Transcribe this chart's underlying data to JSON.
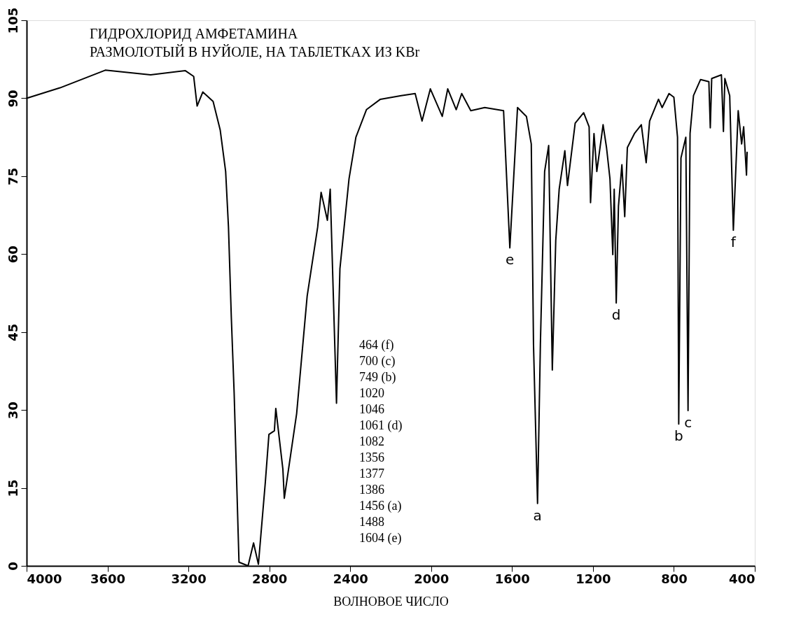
{
  "chart_data": {
    "type": "line",
    "title": "ГИДРОХЛОРИД АМФЕТАМИНА",
    "subtitle": "РАЗМОЛОТЫЙ В НУЙОЛЕ, НА ТАБЛЕТКАХ ИЗ KBr",
    "xlabel": "ВОЛНОВОЕ ЧИСЛО",
    "x": [
      4000,
      3835,
      3611,
      3387,
      3215,
      3174,
      3157,
      3129,
      3078,
      3043,
      3016,
      3002,
      2988,
      2974,
      2950,
      2905,
      2878,
      2854,
      2820,
      2802,
      2775,
      2768,
      2733,
      2726,
      2665,
      2613,
      2561,
      2544,
      2513,
      2499,
      2468,
      2451,
      2406,
      2372,
      2320,
      2251,
      2148,
      2079,
      2045,
      2004,
      1945,
      1918,
      1876,
      1849,
      1804,
      1735,
      1642,
      1611,
      1573,
      1529,
      1505,
      1494,
      1474,
      1460,
      1439,
      1419,
      1401,
      1384,
      1367,
      1339,
      1326,
      1288,
      1246,
      1219,
      1212,
      1195,
      1181,
      1150,
      1133,
      1116,
      1102,
      1095,
      1085,
      1074,
      1057,
      1043,
      1030,
      995,
      961,
      937,
      920,
      876,
      858,
      824,
      800,
      782,
      776,
      765,
      741,
      730,
      720,
      703,
      668,
      627,
      620,
      613,
      565,
      555,
      548,
      524,
      506,
      482,
      465,
      455,
      441,
      438
    ],
    "series": [
      {
        "color": "#000000",
        "values": [
          90,
          92,
          95.4,
          94.5,
          95.3,
          94.2,
          88.5,
          91.2,
          89.4,
          83.9,
          75.9,
          65.2,
          47.9,
          33.3,
          0.7,
          0,
          4.4,
          0.3,
          16,
          25.3,
          26,
          30.3,
          18.6,
          13,
          29.3,
          51.9,
          65.2,
          71.9,
          66.5,
          72.5,
          31.3,
          57.2,
          74.5,
          82.5,
          87.8,
          89.8,
          90.5,
          90.9,
          85.6,
          91.8,
          86.5,
          91.8,
          87.8,
          90.9,
          87.6,
          88.2,
          87.6,
          61.2,
          88.2,
          86.5,
          81.2,
          42.6,
          12,
          42.6,
          75.9,
          80.9,
          37.7,
          62.6,
          72.5,
          79.9,
          73.2,
          85.2,
          87.2,
          84.5,
          69.9,
          83.2,
          75.9,
          84.9,
          80.5,
          74.5,
          59.9,
          72.5,
          50.6,
          69.2,
          77.2,
          67.2,
          80.5,
          83.2,
          84.9,
          77.6,
          85.6,
          89.8,
          88.2,
          90.9,
          90.2,
          82.5,
          27.3,
          78.5,
          82.5,
          29.9,
          83.2,
          90.5,
          93.6,
          93.2,
          84.3,
          93.8,
          94.5,
          83.6,
          93.8,
          90.5,
          64.6,
          87.6,
          81.2,
          84.5,
          75.2,
          79.6
        ]
      }
    ],
    "xlim": [
      4000,
      400
    ],
    "xticks": [
      4000,
      3600,
      3200,
      2800,
      2400,
      2000,
      1600,
      1200,
      800,
      400
    ],
    "ylim": [
      0,
      105
    ],
    "yticks": [
      0,
      15,
      30,
      45,
      60,
      75,
      90,
      105
    ],
    "grid": false,
    "marker": "none",
    "line_style": "solid",
    "annotations": [
      {
        "text": "e",
        "x": 1611,
        "y": 61.2
      },
      {
        "text": "a",
        "x": 1474,
        "y": 12
      },
      {
        "text": "d",
        "x": 1085,
        "y": 50.6
      },
      {
        "text": "b",
        "x": 776,
        "y": 27.3
      },
      {
        "text": "c",
        "x": 730,
        "y": 29.9
      },
      {
        "text": "f",
        "x": 506,
        "y": 64.6
      },
      "464 (f)",
      "700 (c)",
      "749 (b)",
      "1020",
      "1046",
      "1061 (d)",
      "1082",
      "1356",
      "1377",
      "1386",
      "1456 (a)",
      "1488",
      "1604 (e)"
    ]
  }
}
